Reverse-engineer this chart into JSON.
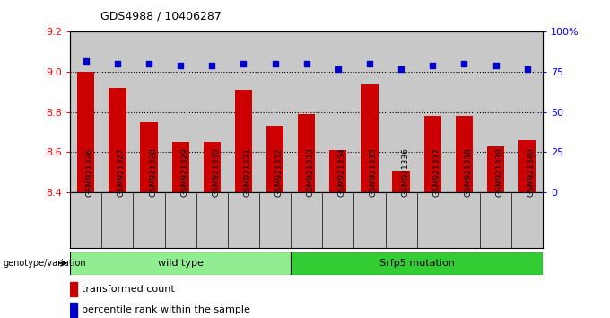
{
  "title": "GDS4988 / 10406287",
  "samples": [
    "GSM921326",
    "GSM921327",
    "GSM921328",
    "GSM921329",
    "GSM921330",
    "GSM921331",
    "GSM921332",
    "GSM921333",
    "GSM921334",
    "GSM921335",
    "GSM921336",
    "GSM921337",
    "GSM921338",
    "GSM921339",
    "GSM921340"
  ],
  "bar_values": [
    9.0,
    8.92,
    8.75,
    8.65,
    8.65,
    8.91,
    8.73,
    8.79,
    8.61,
    8.94,
    8.51,
    8.78,
    8.78,
    8.63,
    8.66
  ],
  "percentile_values": [
    82,
    80,
    80,
    79,
    79,
    80,
    80,
    80,
    77,
    80,
    77,
    79,
    80,
    79,
    77
  ],
  "bar_color": "#cc0000",
  "percentile_color": "#0000cc",
  "ylim_left": [
    8.4,
    9.2
  ],
  "ylim_right": [
    0,
    100
  ],
  "yticks_left": [
    8.4,
    8.6,
    8.8,
    9.0,
    9.2
  ],
  "yticks_right": [
    0,
    25,
    50,
    75,
    100
  ],
  "ytick_labels_right": [
    "0",
    "25",
    "50",
    "75",
    "100%"
  ],
  "grid_values": [
    9.0,
    8.8,
    8.6
  ],
  "wild_type_label": "wild type",
  "mutation_label": "Srfp5 mutation",
  "genotype_label": "genotype/variation",
  "legend_bar_label": "transformed count",
  "legend_pct_label": "percentile rank within the sample",
  "wild_type_color": "#90ee90",
  "mutation_color": "#33cc33",
  "plot_bg_color": "#c8c8c8",
  "xtick_bg_color": "#c8c8c8",
  "base_value": 8.4,
  "n_wild_type": 7,
  "n_mutation": 8
}
